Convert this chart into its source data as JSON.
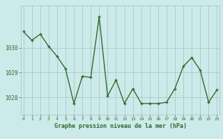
{
  "x": [
    0,
    1,
    2,
    3,
    4,
    5,
    6,
    7,
    8,
    9,
    10,
    11,
    12,
    13,
    14,
    15,
    16,
    17,
    18,
    19,
    20,
    21,
    22,
    23
  ],
  "y": [
    1030.65,
    1030.3,
    1030.55,
    1030.05,
    1029.65,
    1029.15,
    1027.75,
    1028.85,
    1028.8,
    1031.25,
    1028.05,
    1028.7,
    1027.75,
    1028.35,
    1027.75,
    1027.75,
    1027.75,
    1027.8,
    1028.35,
    1029.25,
    1029.6,
    1029.1,
    1027.8,
    1028.3
  ],
  "line_color": "#2d6b2d",
  "marker_color": "#2d6b2d",
  "bg_color": "#cdeaea",
  "grid_color": "#a8c8c8",
  "xlabel": "Graphe pression niveau de la mer (hPa)",
  "xlabel_color": "#2d6b2d",
  "tick_color": "#2d6b2d",
  "yticks": [
    1028,
    1029,
    1030
  ],
  "ylim": [
    1027.3,
    1031.7
  ],
  "xlim": [
    -0.3,
    23.3
  ],
  "xticks": [
    0,
    1,
    2,
    3,
    4,
    5,
    6,
    7,
    8,
    9,
    10,
    11,
    12,
    13,
    14,
    15,
    16,
    17,
    18,
    19,
    20,
    21,
    22,
    23
  ],
  "marker_size": 3.5,
  "line_width": 1.0,
  "fig_width": 3.2,
  "fig_height": 2.0,
  "dpi": 100
}
